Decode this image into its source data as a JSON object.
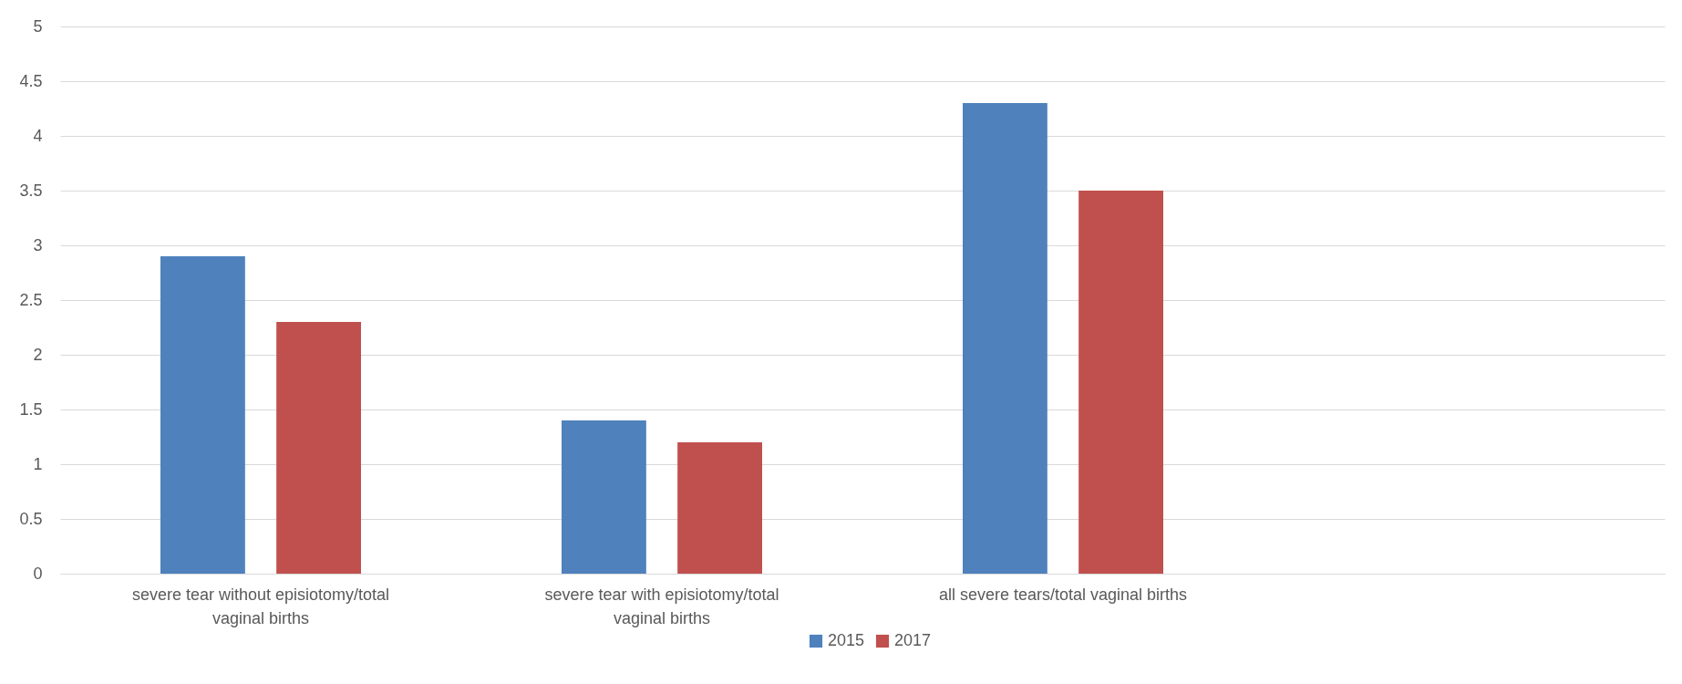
{
  "chart_data": {
    "type": "bar",
    "categories": [
      "severe tear without episiotomy/total vaginal births",
      "severe tear with episiotomy/total vaginal births",
      "all severe tears/total vaginal births",
      null
    ],
    "series": [
      {
        "name": "2015",
        "color": "#4f81bd",
        "values": [
          2.9,
          1.4,
          4.3,
          null
        ]
      },
      {
        "name": "2017",
        "color": "#c0504d",
        "values": [
          2.3,
          1.2,
          3.5,
          null
        ]
      }
    ],
    "ylim": [
      0,
      5
    ],
    "yticks": [
      0,
      0.5,
      1,
      1.5,
      2,
      2.5,
      3,
      3.5,
      4,
      4.5,
      5
    ],
    "grid": "y",
    "legend": "bottom"
  }
}
